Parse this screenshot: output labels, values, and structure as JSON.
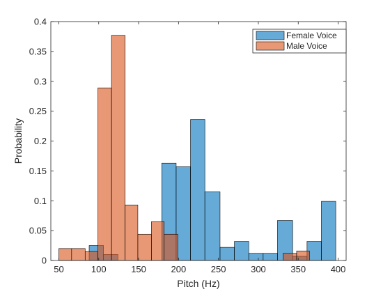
{
  "chart_data": {
    "type": "bar",
    "subtype": "overlapping-histogram",
    "xlabel": "Pitch (Hz)",
    "ylabel": "Probability",
    "xlim": [
      40,
      410
    ],
    "ylim": [
      0,
      0.4
    ],
    "xticks": [
      50,
      100,
      150,
      200,
      250,
      300,
      350,
      400
    ],
    "yticks": [
      0,
      0.05,
      0.1,
      0.15,
      0.2,
      0.25,
      0.3,
      0.35,
      0.4
    ],
    "ytick_labels": [
      "0",
      "0.05",
      "0.1",
      "0.15",
      "0.2",
      "0.25",
      "0.3",
      "0.35",
      "0.4"
    ],
    "grid": false,
    "legend_position": "top-right",
    "series": [
      {
        "name": "Female Voice",
        "color": "#0072bd",
        "alpha": 0.6,
        "bins": [
          {
            "x0": 88,
            "x1": 106,
            "value": 0.025
          },
          {
            "x0": 106,
            "x1": 124,
            "value": 0.01
          },
          {
            "x0": 179,
            "x1": 197,
            "value": 0.163
          },
          {
            "x0": 197,
            "x1": 215,
            "value": 0.157
          },
          {
            "x0": 215,
            "x1": 233,
            "value": 0.236
          },
          {
            "x0": 233,
            "x1": 252,
            "value": 0.115
          },
          {
            "x0": 252,
            "x1": 270,
            "value": 0.022
          },
          {
            "x0": 270,
            "x1": 288,
            "value": 0.032
          },
          {
            "x0": 288,
            "x1": 306,
            "value": 0.012
          },
          {
            "x0": 306,
            "x1": 324,
            "value": 0.012
          },
          {
            "x0": 324,
            "x1": 343,
            "value": 0.067
          },
          {
            "x0": 343,
            "x1": 361,
            "value": 0.007
          },
          {
            "x0": 361,
            "x1": 379,
            "value": 0.032
          },
          {
            "x0": 379,
            "x1": 397,
            "value": 0.099
          }
        ]
      },
      {
        "name": "Male Voice",
        "color": "#d95319",
        "alpha": 0.6,
        "bins": [
          {
            "x0": 50,
            "x1": 66,
            "value": 0.02
          },
          {
            "x0": 66,
            "x1": 83,
            "value": 0.02
          },
          {
            "x0": 83,
            "x1": 99,
            "value": 0.015
          },
          {
            "x0": 99,
            "x1": 116,
            "value": 0.289
          },
          {
            "x0": 116,
            "x1": 133,
            "value": 0.377
          },
          {
            "x0": 133,
            "x1": 149,
            "value": 0.093
          },
          {
            "x0": 149,
            "x1": 166,
            "value": 0.044
          },
          {
            "x0": 166,
            "x1": 182,
            "value": 0.065
          },
          {
            "x0": 182,
            "x1": 199,
            "value": 0.044
          },
          {
            "x0": 331,
            "x1": 348,
            "value": 0.012
          },
          {
            "x0": 348,
            "x1": 364,
            "value": 0.016
          }
        ]
      }
    ]
  }
}
